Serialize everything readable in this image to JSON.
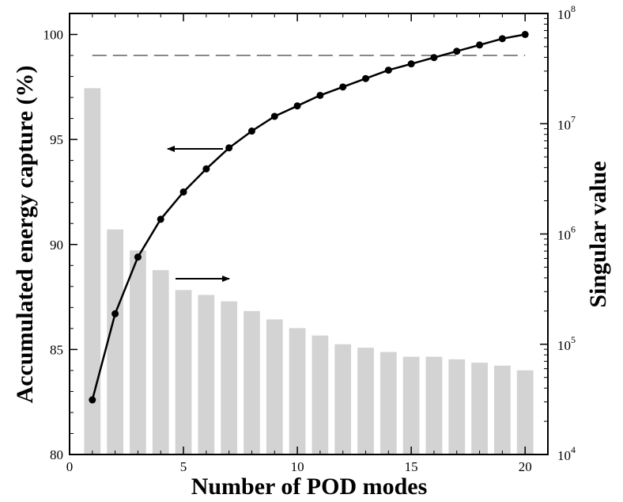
{
  "chart_data": {
    "type": "bar+line",
    "xlabel": "Number of POD modes",
    "ylabel_left": "Accumulated energy capture (%)",
    "ylabel_right": "Singular value",
    "x_ticks": [
      "0",
      "5",
      "10",
      "15",
      "20"
    ],
    "x_tick_values": [
      0,
      5,
      10,
      15,
      20
    ],
    "xlim": [
      0,
      21
    ],
    "y_left_ticks": [
      "80",
      "85",
      "90",
      "95",
      "100"
    ],
    "y_left_tick_values": [
      80,
      85,
      90,
      95,
      100
    ],
    "ylim_left": [
      80,
      101
    ],
    "y_right_ticks": [
      {
        "base": "10",
        "exp": "4",
        "value": 10000
      },
      {
        "base": "10",
        "exp": "5",
        "value": 100000
      },
      {
        "base": "10",
        "exp": "6",
        "value": 1000000
      },
      {
        "base": "10",
        "exp": "7",
        "value": 10000000
      },
      {
        "base": "10",
        "exp": "8",
        "value": 100000000
      }
    ],
    "ylim_right_log": [
      4,
      8
    ],
    "series": [
      {
        "name": "Singular value",
        "axis": "right",
        "render": "bar",
        "color": "#d3d3d3",
        "x": [
          1,
          2,
          3,
          4,
          5,
          6,
          7,
          8,
          9,
          10,
          11,
          12,
          13,
          14,
          15,
          16,
          17,
          18,
          19,
          20
        ],
        "values": [
          21000000,
          1100000,
          710000,
          470000,
          310000,
          280000,
          245000,
          200000,
          168000,
          140000,
          120000,
          100000,
          93000,
          85000,
          77000,
          77000,
          73000,
          68000,
          64000,
          58000
        ]
      },
      {
        "name": "Accumulated energy capture (%)",
        "axis": "left",
        "render": "line+marker",
        "color": "#000000",
        "x": [
          1,
          2,
          3,
          4,
          5,
          6,
          7,
          8,
          9,
          10,
          11,
          12,
          13,
          14,
          15,
          16,
          17,
          18,
          19,
          20
        ],
        "values": [
          82.6,
          86.7,
          89.4,
          91.2,
          92.5,
          93.6,
          94.6,
          95.4,
          96.1,
          96.6,
          97.1,
          97.5,
          97.9,
          98.3,
          98.6,
          98.9,
          99.2,
          99.5,
          99.8,
          100.0
        ]
      }
    ],
    "reference_line": {
      "axis": "left",
      "value": 99,
      "style": "dashed",
      "color": "#888888"
    },
    "annotations": [
      {
        "type": "arrow",
        "direction": "left",
        "points_to": "left axis",
        "near_series": "Accumulated energy capture (%)"
      },
      {
        "type": "arrow",
        "direction": "right",
        "points_to": "right axis",
        "near_series": "Singular value"
      }
    ]
  }
}
